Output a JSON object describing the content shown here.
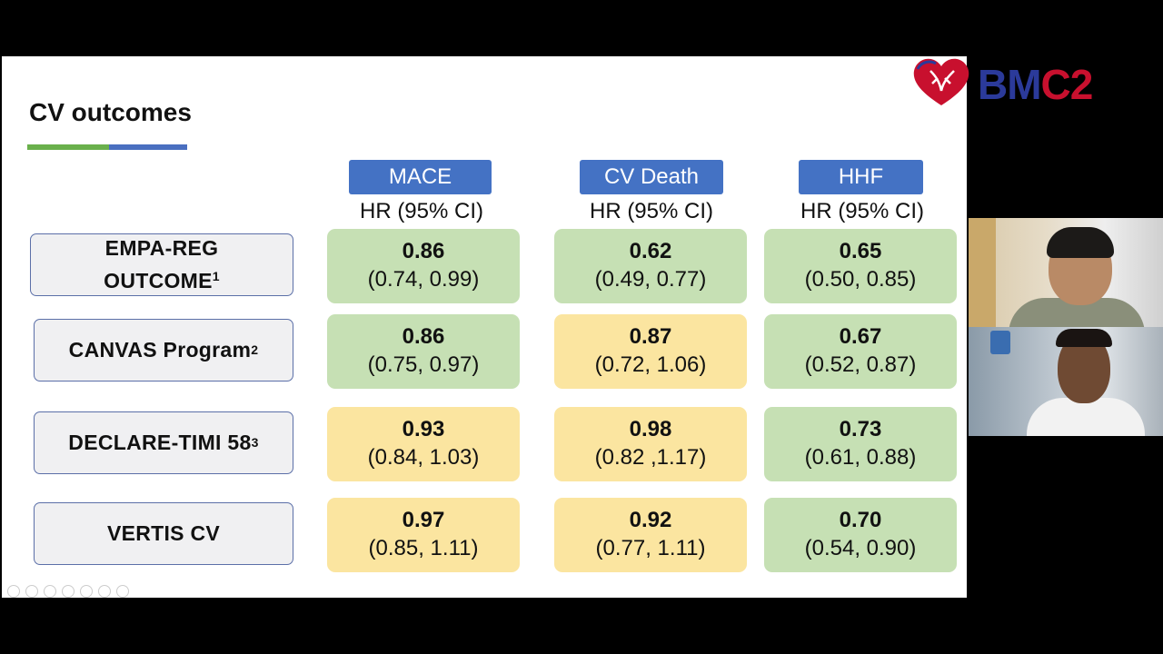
{
  "slide": {
    "title": "CV outcomes",
    "columns": [
      {
        "label": "MACE",
        "sub": "HR (95% CI)"
      },
      {
        "label": "CV Death",
        "sub": "HR (95% CI)"
      },
      {
        "label": "HHF",
        "sub": "HR (95% CI)"
      }
    ],
    "rows": [
      {
        "line1": "EMPA-REG",
        "line2": "OUTCOME",
        "sup": "1",
        "cells": [
          {
            "hr": "0.86",
            "ci": "(0.74, 0.99)",
            "color": "#c6e0b4"
          },
          {
            "hr": "0.62",
            "ci": "(0.49, 0.77)",
            "color": "#c6e0b4"
          },
          {
            "hr": "0.65",
            "ci": "(0.50, 0.85)",
            "color": "#c6e0b4"
          }
        ]
      },
      {
        "line1": "CANVAS Program",
        "line2": "",
        "sup": "2",
        "cells": [
          {
            "hr": "0.86",
            "ci": "(0.75, 0.97)",
            "color": "#c6e0b4"
          },
          {
            "hr": "0.87",
            "ci": "(0.72, 1.06)",
            "color": "#fbe5a0"
          },
          {
            "hr": "0.67",
            "ci": "(0.52, 0.87)",
            "color": "#c6e0b4"
          }
        ]
      },
      {
        "line1": "DECLARE-TIMI 58",
        "line2": "",
        "sup": "3",
        "cells": [
          {
            "hr": "0.93",
            "ci": "(0.84, 1.03)",
            "color": "#fbe5a0"
          },
          {
            "hr": "0.98",
            "ci": "(0.82 ,1.17)",
            "color": "#fbe5a0"
          },
          {
            "hr": "0.73",
            "ci": "(0.61, 0.88)",
            "color": "#c6e0b4"
          }
        ]
      },
      {
        "line1": "VERTIS CV",
        "line2": "",
        "sup": "",
        "cells": [
          {
            "hr": "0.97",
            "ci": "(0.85, 1.11)",
            "color": "#fbe5a0"
          },
          {
            "hr": "0.92",
            "ci": "(0.77, 1.11)",
            "color": "#fbe5a0"
          },
          {
            "hr": "0.70",
            "ci": "(0.54, 0.90)",
            "color": "#c6e0b4"
          }
        ]
      }
    ]
  },
  "logo": {
    "text_a": "BM",
    "text_b": "C2",
    "color_a": "#2b3a9a",
    "color_b": "#c8102e"
  },
  "toolbar": {
    "icons": [
      "back-icon",
      "play-icon",
      "pen-icon",
      "copy-icon",
      "zoom-icon",
      "slides-icon",
      "more-icon"
    ]
  }
}
